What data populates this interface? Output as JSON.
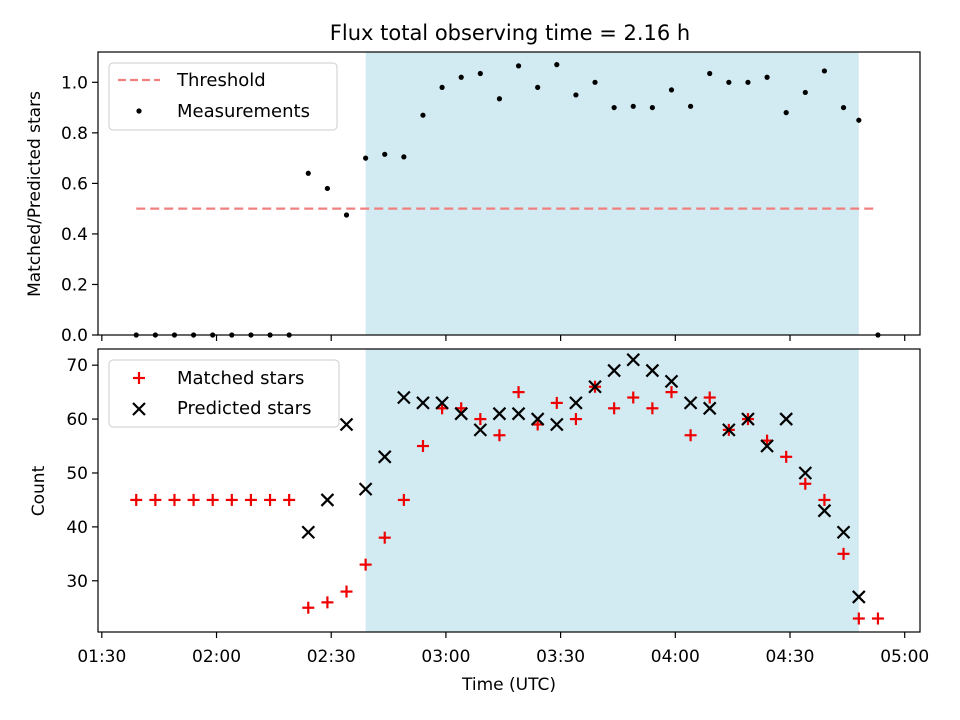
{
  "figure_title": "Flux total observing time = 2.16 h",
  "colors": {
    "threshold": "#f08080",
    "measurements": "#000000",
    "matched": "#ee0000",
    "predicted": "#000000",
    "span": "#add8e6"
  },
  "chart_data": [
    {
      "type": "scatter",
      "panel": "top",
      "title": "Flux total observing time = 2.16 h",
      "xlabel": "",
      "ylabel": "Matched/Predicted stars",
      "xlim": [
        "01:29",
        "05:04"
      ],
      "ylim": [
        0,
        1.12
      ],
      "yticks": [
        0.0,
        0.2,
        0.4,
        0.6,
        0.8,
        1.0
      ],
      "ytick_labels": [
        "0.0",
        "0.2",
        "0.4",
        "0.6",
        "0.8",
        "1.0"
      ],
      "legend": "top-left",
      "shaded_span": {
        "start": "02:39",
        "end": "04:48"
      },
      "series": [
        {
          "name": "Threshold",
          "style": "dashed-line",
          "x": [
            "01:39",
            "04:53"
          ],
          "values": [
            0.5,
            0.5
          ]
        },
        {
          "name": "Measurements",
          "style": "dot",
          "x": [
            "01:39",
            "01:44",
            "01:49",
            "01:54",
            "01:59",
            "02:04",
            "02:09",
            "02:14",
            "02:19",
            "02:24",
            "02:29",
            "02:34",
            "02:39",
            "02:44",
            "02:49",
            "02:54",
            "02:59",
            "03:04",
            "03:09",
            "03:14",
            "03:19",
            "03:24",
            "03:29",
            "03:34",
            "03:39",
            "03:44",
            "03:49",
            "03:54",
            "03:59",
            "04:04",
            "04:09",
            "04:14",
            "04:19",
            "04:24",
            "04:29",
            "04:34",
            "04:39",
            "04:44",
            "04:48",
            "04:53"
          ],
          "values": [
            0,
            0,
            0,
            0,
            0,
            0,
            0,
            0,
            0,
            0.64,
            0.58,
            0.475,
            0.7,
            0.715,
            0.705,
            0.87,
            0.98,
            1.02,
            1.035,
            0.935,
            1.065,
            0.98,
            1.07,
            0.95,
            1.0,
            0.9,
            0.905,
            0.9,
            0.97,
            0.905,
            1.035,
            1.0,
            1.0,
            1.02,
            0.88,
            0.96,
            1.045,
            0.9,
            0.85,
            0.0
          ]
        }
      ]
    },
    {
      "type": "scatter",
      "panel": "bottom",
      "xlabel": "Time (UTC)",
      "ylabel": "Count",
      "xlim": [
        "01:29",
        "05:04"
      ],
      "ylim": [
        20.5,
        73
      ],
      "yticks": [
        30,
        40,
        50,
        60,
        70
      ],
      "ytick_labels": [
        "30",
        "40",
        "50",
        "60",
        "70"
      ],
      "xticks": [
        "01:30",
        "02:00",
        "02:30",
        "03:00",
        "03:30",
        "04:00",
        "04:30",
        "05:00"
      ],
      "legend": "top-left",
      "shaded_span": {
        "start": "02:39",
        "end": "04:48"
      },
      "series": [
        {
          "name": "Matched stars",
          "style": "plus",
          "x": [
            "01:39",
            "01:44",
            "01:49",
            "01:54",
            "01:59",
            "02:04",
            "02:09",
            "02:14",
            "02:19",
            "02:24",
            "02:29",
            "02:34",
            "02:39",
            "02:44",
            "02:49",
            "02:54",
            "02:59",
            "03:04",
            "03:09",
            "03:14",
            "03:19",
            "03:24",
            "03:29",
            "03:34",
            "03:39",
            "03:44",
            "03:49",
            "03:54",
            "03:59",
            "04:04",
            "04:09",
            "04:14",
            "04:19",
            "04:24",
            "04:29",
            "04:34",
            "04:39",
            "04:44",
            "04:48",
            "04:53"
          ],
          "values": [
            45,
            45,
            45,
            45,
            45,
            45,
            45,
            45,
            45,
            25,
            26,
            28,
            33,
            38,
            45,
            55,
            62,
            62,
            60,
            57,
            65,
            59,
            63,
            60,
            66,
            62,
            64,
            62,
            65,
            57,
            64,
            58,
            60,
            56,
            53,
            48,
            45,
            35,
            23,
            23
          ]
        },
        {
          "name": "Predicted stars",
          "style": "x",
          "x": [
            "02:24",
            "02:29",
            "02:34",
            "02:39",
            "02:44",
            "02:49",
            "02:54",
            "02:59",
            "03:04",
            "03:09",
            "03:14",
            "03:19",
            "03:24",
            "03:29",
            "03:34",
            "03:39",
            "03:44",
            "03:49",
            "03:54",
            "03:59",
            "04:04",
            "04:09",
            "04:14",
            "04:19",
            "04:24",
            "04:29",
            "04:34",
            "04:39",
            "04:44",
            "04:48"
          ],
          "values": [
            39,
            45,
            59,
            47,
            53,
            64,
            63,
            63,
            61,
            58,
            61,
            61,
            60,
            59,
            63,
            66,
            69,
            71,
            69,
            67,
            63,
            62,
            58,
            60,
            55,
            60,
            50,
            43,
            39,
            27
          ]
        }
      ]
    }
  ]
}
